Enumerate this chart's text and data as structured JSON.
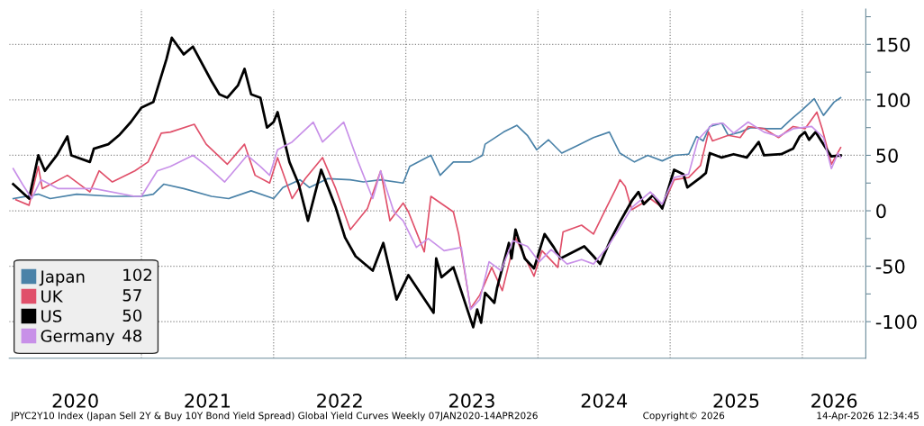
{
  "chart_data": {
    "type": "line",
    "annotations": [
      "JPYC2Y10 Index (Japan Sell 2Y & Buy 10Y Bond Yield Spread) Global Yield Curves Weekly 07JAN2020-14APR2026",
      "Copyright© 2026",
      "14-Apr-2026 12:34:45",
      "102",
      "57",
      "50",
      "48"
    ],
    "series": [
      {
        "name": "Japan",
        "color": "#4a82a8",
        "x": [
          2020.03,
          2020.22,
          2020.31,
          2020.51,
          2020.78,
          2021.0,
          2021.09,
          2021.17,
          2021.32,
          2021.53,
          2021.66,
          2021.83,
          2022.0,
          2022.07,
          2022.2,
          2022.27,
          2022.41,
          2022.58,
          2022.68,
          2022.81,
          2022.98,
          2023.03,
          2023.19,
          2023.26,
          2023.36,
          2023.49,
          2023.58,
          2023.6,
          2023.74,
          2023.84,
          2023.92,
          2023.99,
          2024.08,
          2024.18,
          2024.3,
          2024.42,
          2024.54,
          2024.62,
          2024.73,
          2024.83,
          2024.94,
          2025.03,
          2025.14,
          2025.2,
          2025.25,
          2025.3,
          2025.39,
          2025.44,
          2025.53,
          2025.61,
          2025.73,
          2025.84,
          2025.91,
          2026.0,
          2026.09,
          2026.16,
          2026.24,
          2026.29
        ],
        "values": [
          11,
          15,
          11,
          15,
          13,
          13,
          15,
          24,
          20,
          13,
          11,
          18,
          11,
          21,
          28,
          21,
          29,
          28,
          26,
          28,
          25,
          40,
          50,
          32,
          44,
          44,
          50,
          60,
          71,
          77,
          68,
          55,
          64,
          52,
          59,
          66,
          71,
          52,
          44,
          50,
          45,
          50,
          51,
          67,
          63,
          76,
          79,
          68,
          71,
          75,
          74,
          74,
          82,
          91,
          101,
          86,
          98,
          102
        ]
      },
      {
        "name": "UK",
        "color": "#e0506a",
        "x": [
          2020.05,
          2020.15,
          2020.22,
          2020.25,
          2020.44,
          2020.61,
          2020.68,
          2020.78,
          2020.95,
          2021.05,
          2021.15,
          2021.22,
          2021.4,
          2021.49,
          2021.65,
          2021.78,
          2021.86,
          2021.97,
          2022.03,
          2022.14,
          2022.24,
          2022.37,
          2022.47,
          2022.58,
          2022.71,
          2022.81,
          2022.88,
          2022.98,
          2023.02,
          2023.14,
          2023.19,
          2023.36,
          2023.4,
          2023.49,
          2023.56,
          2023.65,
          2023.73,
          2023.83,
          2023.97,
          2024.03,
          2024.15,
          2024.19,
          2024.33,
          2024.42,
          2024.51,
          2024.59,
          2024.62,
          2024.66,
          2024.71,
          2024.85,
          2024.94,
          2025.03,
          2025.14,
          2025.23,
          2025.29,
          2025.32,
          2025.44,
          2025.53,
          2025.59,
          2025.71,
          2025.82,
          2025.93,
          2026.02,
          2026.11,
          2026.15,
          2026.22,
          2026.29
        ],
        "values": [
          10,
          5,
          40,
          20,
          32,
          17,
          36,
          26,
          36,
          44,
          70,
          71,
          78,
          60,
          42,
          60,
          32,
          25,
          48,
          11,
          29,
          48,
          20,
          -17,
          2,
          36,
          -9,
          7,
          -1,
          -37,
          13,
          -1,
          -21,
          -88,
          -76,
          -51,
          -72,
          -24,
          -59,
          -36,
          -51,
          -19,
          -13,
          -21,
          1,
          20,
          28,
          22,
          1,
          11,
          3,
          28,
          30,
          41,
          71,
          63,
          68,
          66,
          76,
          74,
          66,
          76,
          74,
          89,
          74,
          42,
          57
        ]
      },
      {
        "name": "US",
        "color": "#000000",
        "x": [
          2020.03,
          2020.15,
          2020.22,
          2020.27,
          2020.36,
          2020.44,
          2020.47,
          2020.61,
          2020.64,
          2020.75,
          2020.83,
          2020.92,
          2021.0,
          2021.09,
          2021.19,
          2021.23,
          2021.32,
          2021.39,
          2021.53,
          2021.59,
          2021.65,
          2021.73,
          2021.78,
          2021.83,
          2021.9,
          2021.95,
          2022.0,
          2022.03,
          2022.12,
          2022.19,
          2022.26,
          2022.36,
          2022.47,
          2022.54,
          2022.62,
          2022.75,
          2022.83,
          2022.93,
          2023.02,
          2023.21,
          2023.23,
          2023.27,
          2023.36,
          2023.51,
          2023.54,
          2023.57,
          2023.6,
          2023.67,
          2023.69,
          2023.78,
          2023.8,
          2023.83,
          2023.9,
          2023.97,
          2024.05,
          2024.12,
          2024.17,
          2024.35,
          2024.42,
          2024.47,
          2024.55,
          2024.62,
          2024.71,
          2024.76,
          2024.8,
          2024.87,
          2024.94,
          2025.03,
          2025.1,
          2025.13,
          2025.23,
          2025.27,
          2025.3,
          2025.39,
          2025.48,
          2025.58,
          2025.67,
          2025.71,
          2025.84,
          2025.93,
          2025.98,
          2026.02,
          2026.05,
          2026.1,
          2026.18,
          2026.22,
          2026.29
        ],
        "values": [
          24,
          11,
          50,
          36,
          50,
          67,
          50,
          44,
          56,
          60,
          68,
          80,
          93,
          98,
          137,
          156,
          141,
          148,
          117,
          105,
          102,
          113,
          128,
          105,
          102,
          75,
          80,
          89,
          44,
          24,
          -9,
          37,
          3,
          -24,
          -41,
          -54,
          -29,
          -80,
          -58,
          -92,
          -43,
          -60,
          -51,
          -105,
          -89,
          -101,
          -74,
          -83,
          -70,
          -29,
          -43,
          -17,
          -43,
          -52,
          -21,
          -33,
          -43,
          -32,
          -41,
          -48,
          -26,
          -10,
          9,
          17,
          6,
          14,
          2,
          37,
          33,
          21,
          30,
          34,
          52,
          48,
          51,
          48,
          62,
          50,
          51,
          56,
          67,
          71,
          64,
          71,
          56,
          49,
          50
        ]
      },
      {
        "name": "Germany",
        "color": "#c890e8",
        "x": [
          2020.03,
          2020.1,
          2020.17,
          2020.24,
          2020.37,
          2020.64,
          2020.95,
          2021.0,
          2021.12,
          2021.22,
          2021.39,
          2021.49,
          2021.63,
          2021.8,
          2021.9,
          2021.97,
          2022.03,
          2022.14,
          2022.3,
          2022.37,
          2022.53,
          2022.64,
          2022.75,
          2022.81,
          2022.91,
          2022.98,
          2023.08,
          2023.17,
          2023.29,
          2023.42,
          2023.49,
          2023.56,
          2023.63,
          2023.72,
          2023.81,
          2023.92,
          2024.01,
          2024.1,
          2024.22,
          2024.33,
          2024.42,
          2024.53,
          2024.62,
          2024.71,
          2024.85,
          2024.94,
          2025.03,
          2025.14,
          2025.21,
          2025.32,
          2025.4,
          2025.48,
          2025.59,
          2025.71,
          2025.82,
          2025.93,
          2026.07,
          2026.16,
          2026.22,
          2026.27,
          2026.29
        ],
        "values": [
          38,
          24,
          11,
          28,
          20,
          20,
          13,
          13,
          36,
          40,
          50,
          41,
          26,
          50,
          40,
          32,
          55,
          62,
          80,
          62,
          80,
          44,
          11,
          36,
          -1,
          -9,
          -33,
          -25,
          -36,
          -33,
          -89,
          -80,
          -46,
          -54,
          -27,
          -32,
          -46,
          -35,
          -48,
          -44,
          -48,
          -32,
          -15,
          3,
          17,
          6,
          30,
          33,
          64,
          78,
          79,
          70,
          80,
          71,
          67,
          74,
          76,
          66,
          38,
          52,
          48
        ]
      }
    ],
    "xlim": [
      2020.0,
      2026.48
    ],
    "xticks": [
      {
        "value": 2020.5,
        "label": "2020"
      },
      {
        "value": 2021,
        "label": null
      },
      {
        "value": 2021.5,
        "label": "2021"
      },
      {
        "value": 2022,
        "label": null
      },
      {
        "value": 2022.5,
        "label": "2022"
      },
      {
        "value": 2023,
        "label": null
      },
      {
        "value": 2023.5,
        "label": "2023"
      },
      {
        "value": 2024,
        "label": null
      },
      {
        "value": 2024.5,
        "label": "2024"
      },
      {
        "value": 2025,
        "label": null
      },
      {
        "value": 2025.5,
        "label": "2025"
      },
      {
        "value": 2026,
        "label": null
      },
      {
        "value": 2026.24,
        "label": "2026"
      }
    ],
    "ylim": [
      -133,
      182
    ],
    "yticks": [
      -100,
      {
        "value": -75,
        "label": null
      },
      -50,
      {
        "value": -25,
        "label": null
      },
      0,
      {
        "value": 25,
        "label": null
      },
      50,
      {
        "value": 75,
        "label": null
      },
      100,
      {
        "value": 125,
        "label": null
      },
      150,
      {
        "value": 175,
        "label": null
      }
    ],
    "grid": true,
    "legend": "bottom left",
    "marker": "none",
    "line_style": "solid"
  }
}
